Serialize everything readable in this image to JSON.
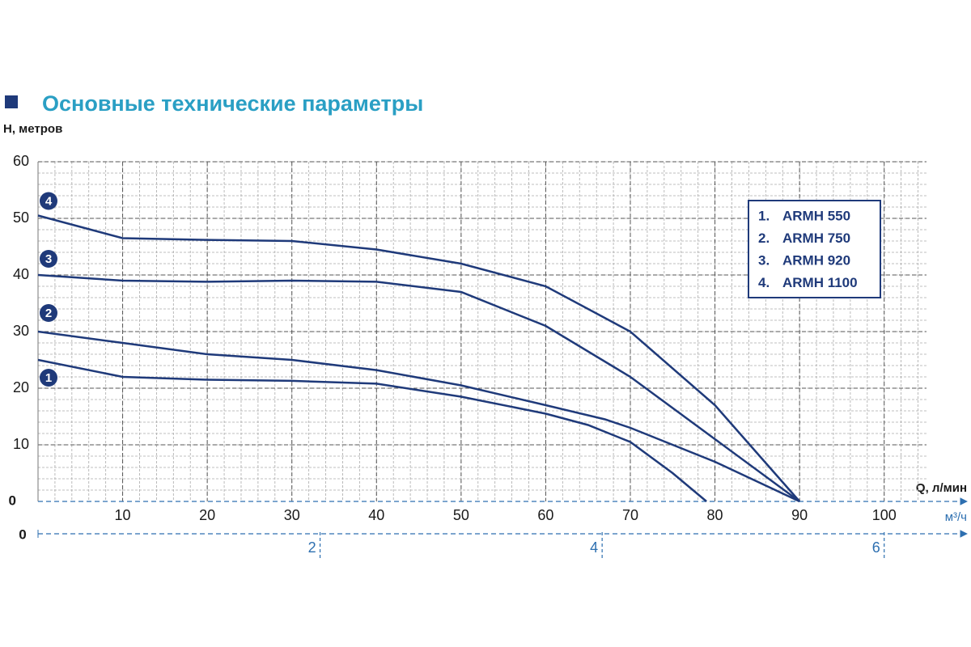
{
  "chart_data": {
    "type": "line",
    "title": "Основные технические параметры",
    "ylabel": "H, метров",
    "xlabel": "Q, л/мин",
    "x2label": "м³/ч",
    "xlim": [
      0,
      105
    ],
    "xticks": [
      10,
      20,
      30,
      40,
      50,
      60,
      70,
      80,
      90,
      100
    ],
    "x2lim": [
      0,
      6.3
    ],
    "x2ticks": [
      0,
      2,
      4,
      6
    ],
    "ylim": [
      0,
      60
    ],
    "yticks": [
      0,
      10,
      20,
      30,
      40,
      50,
      60
    ],
    "grid": true,
    "legend": "upper right",
    "series": [
      {
        "name": "ARMH 550",
        "legend_number": "1.",
        "marker": "1",
        "color": "#1f3a7a",
        "x": [
          0,
          10,
          20,
          30,
          40,
          50,
          60,
          65,
          70,
          75,
          79
        ],
        "values": [
          25,
          22,
          21.5,
          21.3,
          20.8,
          18.5,
          15.5,
          13.5,
          10.5,
          5,
          0
        ]
      },
      {
        "name": "ARMH 750",
        "legend_number": "2.",
        "marker": "2",
        "color": "#1f3a7a",
        "x": [
          0,
          10,
          20,
          30,
          40,
          50,
          60,
          67,
          70,
          80,
          90
        ],
        "values": [
          30,
          28,
          26,
          25,
          23.2,
          20.5,
          17,
          14.5,
          13,
          7,
          0
        ]
      },
      {
        "name": "ARMH 920",
        "legend_number": "3.",
        "marker": "3",
        "color": "#1f3a7a",
        "x": [
          0,
          10,
          20,
          30,
          40,
          50,
          60,
          70,
          80,
          90
        ],
        "values": [
          40,
          39,
          38.8,
          39,
          38.8,
          37,
          31,
          22,
          11,
          0
        ]
      },
      {
        "name": "ARMH 1100",
        "legend_number": "4.",
        "marker": "4",
        "color": "#1f3a7a",
        "x": [
          0,
          10,
          20,
          30,
          40,
          50,
          60,
          70,
          80,
          90
        ],
        "values": [
          50.5,
          46.5,
          46.2,
          46,
          44.5,
          42,
          38,
          30,
          17,
          0
        ]
      }
    ]
  }
}
